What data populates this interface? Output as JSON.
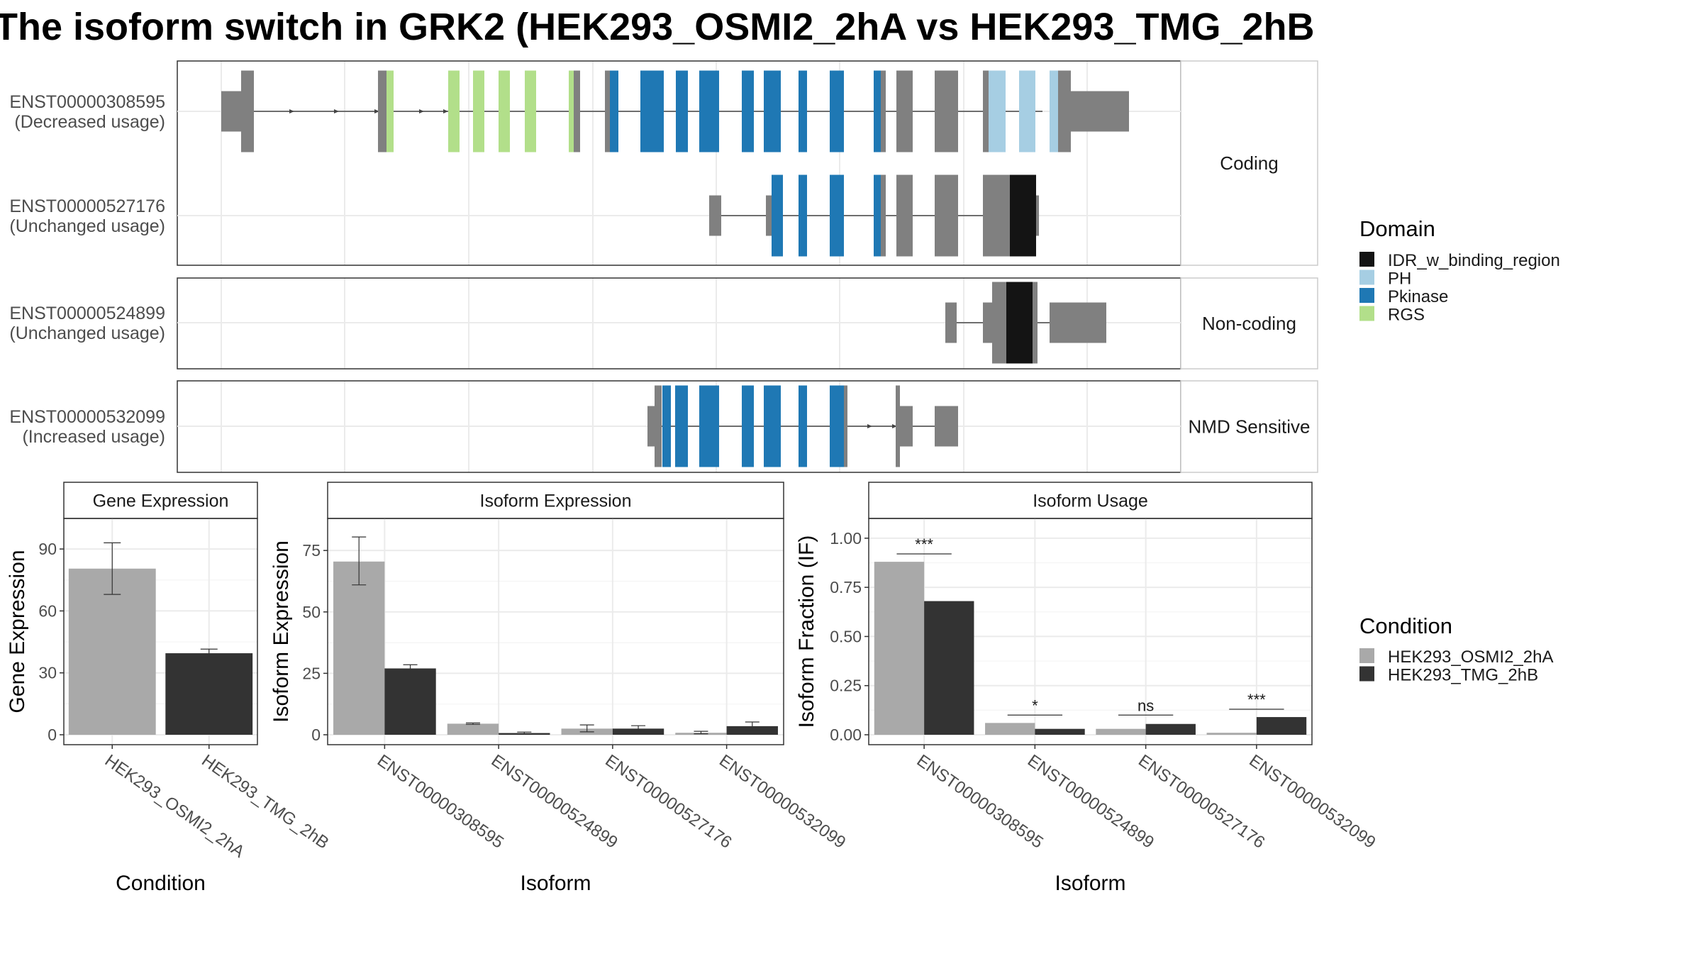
{
  "title": "The isoform switch in GRK2 (HEK293_OSMI2_2hA vs HEK293_TMG_2hB",
  "transcript_panels": [
    {
      "label": "Coding",
      "transcripts": [
        {
          "id": "ENST00000308595",
          "usage": "(Decreased usage)"
        },
        {
          "id": "ENST00000527176",
          "usage": "(Unchanged usage)"
        }
      ]
    },
    {
      "label": "Non-coding",
      "transcripts": [
        {
          "id": "ENST00000524899",
          "usage": "(Unchanged usage)"
        }
      ]
    },
    {
      "label": "NMD Sensitive",
      "transcripts": [
        {
          "id": "ENST00000532099",
          "usage": "(Increased usage)"
        }
      ]
    }
  ],
  "domain_legend": {
    "title": "Domain",
    "items": [
      {
        "name": "IDR_w_binding_region",
        "color": "#141414"
      },
      {
        "name": "PH",
        "color": "#a6cee3"
      },
      {
        "name": "Pkinase",
        "color": "#1f78b4"
      },
      {
        "name": "RGS",
        "color": "#b2df8a"
      }
    ]
  },
  "condition_legend": {
    "title": "Condition",
    "items": [
      {
        "name": "HEK293_OSMI2_2hA",
        "color": "#a9a9a9"
      },
      {
        "name": "HEK293_TMG_2hB",
        "color": "#333333"
      }
    ]
  },
  "colors": {
    "exon": "#808080",
    "intron": "#444444",
    "strip": "#f2f2f2",
    "grid": "#ebebeb"
  },
  "chart_data": [
    {
      "type": "bar",
      "title": "Gene Expression",
      "xlabel": "Condition",
      "ylabel": "Gene Expression",
      "categories": [
        "HEK293_OSMI2_2hA",
        "HEK293_TMG_2hB"
      ],
      "values": [
        80.5,
        39.5
      ],
      "error": [
        [
          68,
          93
        ],
        [
          37.5,
          41.5
        ]
      ],
      "ylim": [
        0,
        100
      ],
      "yticks": [
        0,
        30,
        60,
        90
      ]
    },
    {
      "type": "bar",
      "title": "Isoform Expression",
      "xlabel": "Isoform",
      "ylabel": "Isoform Expression",
      "categories": [
        "ENST00000308595",
        "ENST00000524899",
        "ENST00000527176",
        "ENST00000532099"
      ],
      "series": [
        {
          "name": "HEK293_OSMI2_2hA",
          "values": [
            70.5,
            4.5,
            2.5,
            0.8
          ],
          "error": [
            [
              61,
              80.5
            ],
            [
              4.2,
              4.8
            ],
            [
              1.2,
              4.0
            ],
            [
              0.4,
              1.4
            ]
          ]
        },
        {
          "name": "HEK293_TMG_2hB",
          "values": [
            27,
            0.7,
            2.5,
            3.5
          ],
          "error": [
            [
              26,
              28.5
            ],
            [
              0.3,
              1.1
            ],
            [
              1.3,
              3.7
            ],
            [
              1.7,
              5.2
            ]
          ]
        }
      ],
      "ylim": [
        0,
        84
      ],
      "yticks": [
        0,
        25,
        50,
        75
      ]
    },
    {
      "type": "bar",
      "title": "Isoform Usage",
      "xlabel": "Isoform",
      "ylabel": "Isoform Fraction (IF)",
      "categories": [
        "ENST00000308595",
        "ENST00000524899",
        "ENST00000527176",
        "ENST00000532099"
      ],
      "series": [
        {
          "name": "HEK293_OSMI2_2hA",
          "values": [
            0.88,
            0.06,
            0.03,
            0.01
          ]
        },
        {
          "name": "HEK293_TMG_2hB",
          "values": [
            0.68,
            0.03,
            0.055,
            0.09
          ]
        }
      ],
      "significance": [
        "***",
        "*",
        "ns",
        "***"
      ],
      "significance_y": [
        0.92,
        0.1,
        0.1,
        0.13
      ],
      "ylim": [
        0,
        1.05
      ],
      "yticks": [
        0.0,
        0.25,
        0.5,
        0.75,
        1.0
      ],
      "ytick_labels": [
        "0.00",
        "0.25",
        "0.50",
        "0.75",
        "1.00"
      ]
    }
  ]
}
